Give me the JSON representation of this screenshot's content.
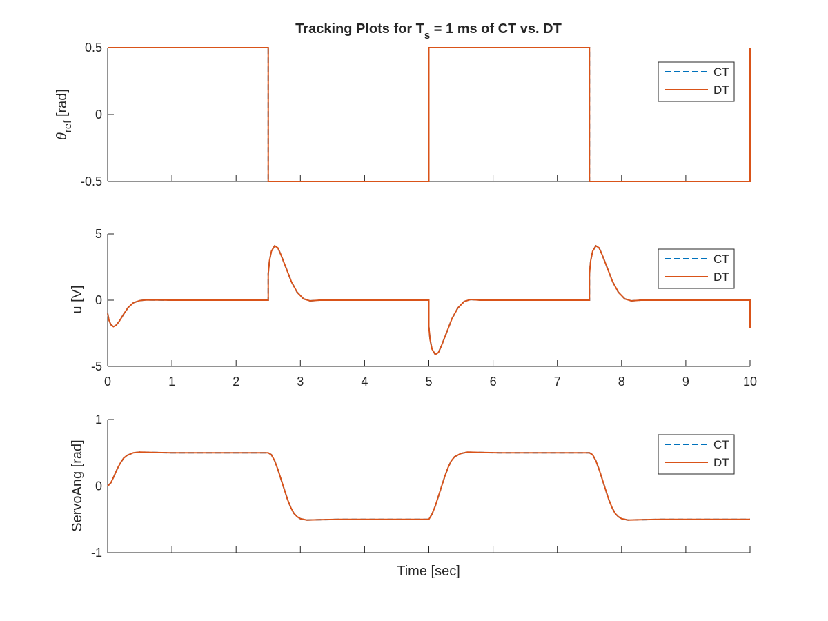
{
  "figure": {
    "title_main": "Tracking Plots for T",
    "title_sub": "s",
    "title_rest": " = 1 ms of CT vs. DT",
    "xlabel": "Time [sec]"
  },
  "colors": {
    "ct": "#0072BD",
    "dt": "#D95319",
    "axis": "#262626",
    "background": "#ffffff"
  },
  "chart_data": [
    {
      "type": "line",
      "ylabel_main": "θ",
      "ylabel_sub": "ref",
      "ylabel_rest": " [rad]",
      "xlim": [
        0,
        10
      ],
      "ylim": [
        -0.5,
        0.5
      ],
      "yticks": [
        "-0.5",
        "0",
        "0.5"
      ],
      "xticks": [],
      "grid": false,
      "legend_placement": "top-right",
      "series": [
        {
          "name": "CT",
          "style": "dashed",
          "signal": "reference"
        },
        {
          "name": "DT",
          "style": "solid",
          "signal": "reference"
        }
      ],
      "points": [
        [
          0,
          0.5
        ],
        [
          2.5,
          0.5
        ],
        [
          2.5,
          -0.5
        ],
        [
          5.0,
          -0.5
        ],
        [
          5.0,
          0.5
        ],
        [
          7.5,
          0.5
        ],
        [
          7.5,
          -0.5
        ],
        [
          10.0,
          -0.5
        ],
        [
          10.0,
          0.5
        ]
      ]
    },
    {
      "type": "line",
      "ylabel_main": "u [V]",
      "xlim": [
        0,
        10
      ],
      "ylim": [
        -5,
        5
      ],
      "yticks": [
        "-5",
        "0",
        "5"
      ],
      "xticks": [
        "0",
        "1",
        "2",
        "3",
        "4",
        "5",
        "6",
        "7",
        "8",
        "9",
        "10"
      ],
      "grid": false,
      "legend_placement": "top-right",
      "series": [
        {
          "name": "CT",
          "style": "dashed",
          "signal": "control"
        },
        {
          "name": "DT",
          "style": "solid",
          "signal": "control"
        }
      ],
      "points": [
        [
          0,
          -1.0
        ],
        [
          0.02,
          -1.5
        ],
        [
          0.05,
          -1.85
        ],
        [
          0.09,
          -2.0
        ],
        [
          0.13,
          -1.9
        ],
        [
          0.18,
          -1.6
        ],
        [
          0.25,
          -1.05
        ],
        [
          0.32,
          -0.55
        ],
        [
          0.4,
          -0.2
        ],
        [
          0.5,
          -0.03
        ],
        [
          0.6,
          0.02
        ],
        [
          0.8,
          0.01
        ],
        [
          1.0,
          0.0
        ],
        [
          2.5,
          0.0
        ],
        [
          2.5,
          2.0
        ],
        [
          2.52,
          3.0
        ],
        [
          2.55,
          3.7
        ],
        [
          2.6,
          4.1
        ],
        [
          2.65,
          3.95
        ],
        [
          2.7,
          3.4
        ],
        [
          2.78,
          2.4
        ],
        [
          2.86,
          1.4
        ],
        [
          2.95,
          0.6
        ],
        [
          3.05,
          0.1
        ],
        [
          3.15,
          -0.05
        ],
        [
          3.3,
          0.0
        ],
        [
          5.0,
          0.0
        ],
        [
          5.0,
          -2.0
        ],
        [
          5.02,
          -3.0
        ],
        [
          5.05,
          -3.7
        ],
        [
          5.1,
          -4.1
        ],
        [
          5.15,
          -3.95
        ],
        [
          5.2,
          -3.4
        ],
        [
          5.28,
          -2.4
        ],
        [
          5.36,
          -1.4
        ],
        [
          5.45,
          -0.6
        ],
        [
          5.55,
          -0.1
        ],
        [
          5.65,
          0.05
        ],
        [
          5.8,
          0.0
        ],
        [
          7.5,
          0.0
        ],
        [
          7.5,
          2.0
        ],
        [
          7.52,
          3.0
        ],
        [
          7.55,
          3.7
        ],
        [
          7.6,
          4.1
        ],
        [
          7.65,
          3.95
        ],
        [
          7.7,
          3.4
        ],
        [
          7.78,
          2.4
        ],
        [
          7.86,
          1.4
        ],
        [
          7.95,
          0.6
        ],
        [
          8.05,
          0.1
        ],
        [
          8.15,
          -0.05
        ],
        [
          8.3,
          0.0
        ],
        [
          10.0,
          0.0
        ],
        [
          10.0,
          -2.1
        ]
      ]
    },
    {
      "type": "line",
      "ylabel_main": "ServoAng [rad]",
      "xlim": [
        0,
        10
      ],
      "ylim": [
        -1,
        1
      ],
      "yticks": [
        "-1",
        "0",
        "1"
      ],
      "xticks": [],
      "grid": false,
      "legend_placement": "top-right",
      "series": [
        {
          "name": "CT",
          "style": "dashed",
          "signal": "servo angle"
        },
        {
          "name": "DT",
          "style": "solid",
          "signal": "servo angle"
        }
      ],
      "points": [
        [
          0,
          0.0
        ],
        [
          0.05,
          0.05
        ],
        [
          0.1,
          0.15
        ],
        [
          0.15,
          0.26
        ],
        [
          0.2,
          0.35
        ],
        [
          0.25,
          0.42
        ],
        [
          0.3,
          0.46
        ],
        [
          0.4,
          0.5
        ],
        [
          0.5,
          0.51
        ],
        [
          0.7,
          0.505
        ],
        [
          1.0,
          0.5
        ],
        [
          2.5,
          0.5
        ],
        [
          2.55,
          0.47
        ],
        [
          2.6,
          0.38
        ],
        [
          2.65,
          0.25
        ],
        [
          2.7,
          0.1
        ],
        [
          2.75,
          -0.05
        ],
        [
          2.8,
          -0.2
        ],
        [
          2.85,
          -0.32
        ],
        [
          2.9,
          -0.41
        ],
        [
          2.95,
          -0.46
        ],
        [
          3.0,
          -0.49
        ],
        [
          3.1,
          -0.51
        ],
        [
          3.3,
          -0.505
        ],
        [
          3.6,
          -0.5
        ],
        [
          5.0,
          -0.5
        ],
        [
          5.05,
          -0.42
        ],
        [
          5.1,
          -0.3
        ],
        [
          5.15,
          -0.15
        ],
        [
          5.2,
          0.0
        ],
        [
          5.25,
          0.15
        ],
        [
          5.3,
          0.28
        ],
        [
          5.35,
          0.38
        ],
        [
          5.4,
          0.44
        ],
        [
          5.5,
          0.49
        ],
        [
          5.6,
          0.51
        ],
        [
          5.8,
          0.505
        ],
        [
          6.1,
          0.5
        ],
        [
          7.5,
          0.5
        ],
        [
          7.55,
          0.47
        ],
        [
          7.6,
          0.38
        ],
        [
          7.65,
          0.25
        ],
        [
          7.7,
          0.1
        ],
        [
          7.75,
          -0.05
        ],
        [
          7.8,
          -0.2
        ],
        [
          7.85,
          -0.32
        ],
        [
          7.9,
          -0.41
        ],
        [
          7.95,
          -0.46
        ],
        [
          8.0,
          -0.49
        ],
        [
          8.1,
          -0.51
        ],
        [
          8.3,
          -0.505
        ],
        [
          8.6,
          -0.5
        ],
        [
          10.0,
          -0.5
        ]
      ]
    }
  ]
}
